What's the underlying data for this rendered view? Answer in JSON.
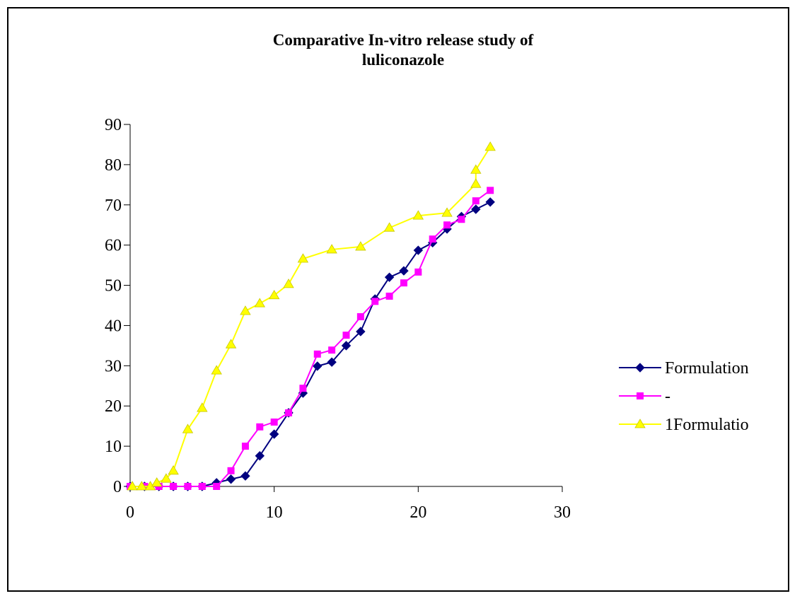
{
  "chart_data": {
    "type": "line",
    "title": [
      "Comparative In-vitro release study of",
      "luliconazole"
    ],
    "xlim": [
      0,
      30
    ],
    "xticks": [
      0,
      10,
      20,
      30
    ],
    "ylim": [
      0,
      90
    ],
    "yticks": [
      0,
      10,
      20,
      30,
      40,
      50,
      60,
      70,
      80,
      90
    ],
    "legend": "right",
    "series": [
      {
        "name": "Formulation",
        "color": "#000080",
        "marker": "diamond",
        "x": [
          0,
          1,
          2,
          3,
          4,
          5,
          6,
          7,
          8,
          9,
          10,
          11,
          12,
          13,
          14,
          15,
          16,
          17,
          18,
          19,
          20,
          21,
          22,
          23,
          24,
          25
        ],
        "values": [
          0,
          0,
          0,
          0,
          0,
          0,
          0.9,
          1.8,
          2.6,
          7.6,
          13,
          18.3,
          23.2,
          29.9,
          30.9,
          35,
          38.5,
          46.6,
          52,
          53.6,
          58.7,
          60.6,
          64,
          67.1,
          68.9,
          70.7
        ]
      },
      {
        "name": "-",
        "color": "#ff00ff",
        "marker": "square",
        "x": [
          0,
          1,
          2,
          3,
          4,
          5,
          6,
          7,
          8,
          9,
          10,
          11,
          12,
          13,
          14,
          15,
          16,
          17,
          18,
          19,
          20,
          21,
          22,
          23,
          24,
          25
        ],
        "values": [
          0,
          0,
          0,
          0,
          0,
          0,
          0,
          3.9,
          10,
          14.8,
          16,
          18.3,
          24.4,
          32.9,
          33.9,
          37.6,
          42.2,
          46,
          47.3,
          50.6,
          53.3,
          61.5,
          65,
          66.4,
          71,
          73.6
        ]
      },
      {
        "name": "1Formulatio",
        "color": "#ffff00",
        "marker": "triangle",
        "x": [
          0.15,
          0.8,
          1.4,
          1.85,
          2.5,
          3,
          4,
          5,
          6,
          7,
          8,
          9,
          10,
          11,
          12,
          14,
          16,
          18,
          20,
          22,
          24,
          24,
          25
        ],
        "values": [
          0,
          0,
          0,
          0.9,
          1.9,
          3.9,
          14.2,
          19.5,
          28.8,
          35.3,
          43.6,
          45.5,
          47.5,
          50.3,
          56.6,
          58.9,
          59.6,
          64.3,
          67.3,
          68,
          75.2,
          78.7,
          84.4
        ]
      }
    ]
  }
}
